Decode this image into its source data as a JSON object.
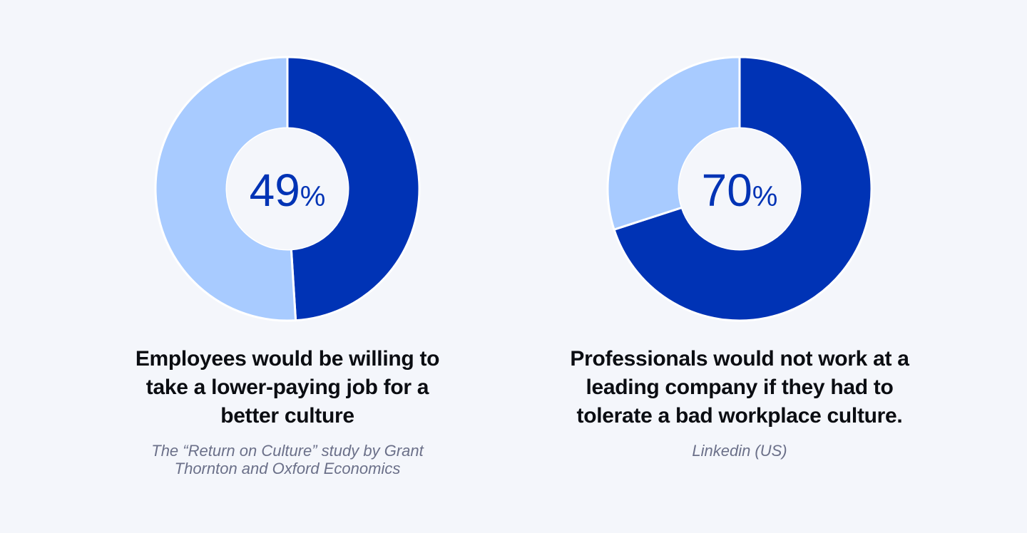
{
  "chart_data": [
    {
      "type": "pie",
      "values": [
        49,
        51
      ],
      "value_labels": [
        "49%",
        null
      ],
      "colors": [
        "#0033b5",
        "#a8cbff"
      ],
      "title": "Employees would be willing to take a lower-paying job for a better culture",
      "source": "The “Return on Culture” study by Grant Thornton and Oxford Economics"
    },
    {
      "type": "pie",
      "values": [
        70,
        30
      ],
      "value_labels": [
        "70%",
        null
      ],
      "colors": [
        "#0033b5",
        "#a8cbff"
      ],
      "title": "Professionals would not work at a leading company if they had to tolerate a bad workplace culture.",
      "source": "Linkedin (US)"
    }
  ]
}
